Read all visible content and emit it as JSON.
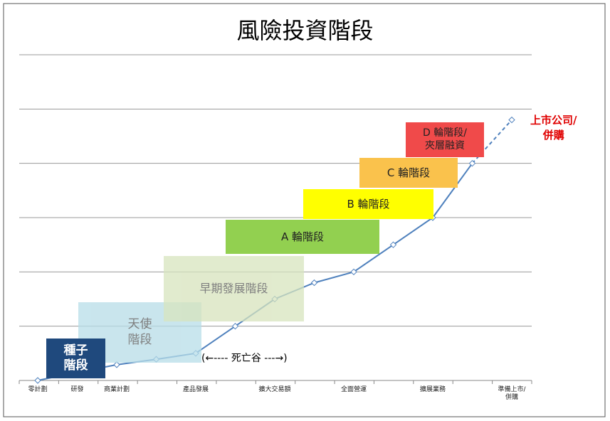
{
  "chart_data": {
    "type": "line",
    "title": "風險投資階段",
    "categories": [
      "零計劃",
      "研發",
      "商業計劃",
      null,
      "產品發展",
      null,
      "擴大交易額",
      null,
      "全面營運",
      null,
      "擴展業務",
      null,
      "準備上市/\n併購"
    ],
    "series": [
      {
        "color": "#4f81bd",
        "values": [
          0,
          0.15,
          0.29,
          0.39,
          0.5,
          1.0,
          1.5,
          1.8,
          2.0,
          2.5,
          3.0,
          4.0,
          4.8
        ]
      }
    ],
    "last_segment_dashed": true,
    "ylim": [
      0,
      6
    ],
    "yticks": [
      0,
      1,
      2,
      3,
      4,
      5,
      6
    ],
    "grid": true,
    "stages": [
      {
        "label": "天使\n階段",
        "color": "#b7dde8"
      },
      {
        "label": "種子\n階段",
        "color": "#1f497d"
      },
      {
        "label": "早期發展階段",
        "color": "#d7e4bd"
      },
      {
        "label": "A 輪階段",
        "color": "#92d050"
      },
      {
        "label": "B 輪階段",
        "color": "#ffff00"
      },
      {
        "label": "C 輪階段",
        "color": "#fac24c"
      },
      {
        "label": "D 輪階段/\n夾層融資",
        "color": "#f04a4a"
      }
    ],
    "annotations": [
      {
        "text": "(←---- 死亡谷 ---→)"
      },
      {
        "text": "上市公司/\n併購",
        "color": "#e00000"
      }
    ]
  }
}
